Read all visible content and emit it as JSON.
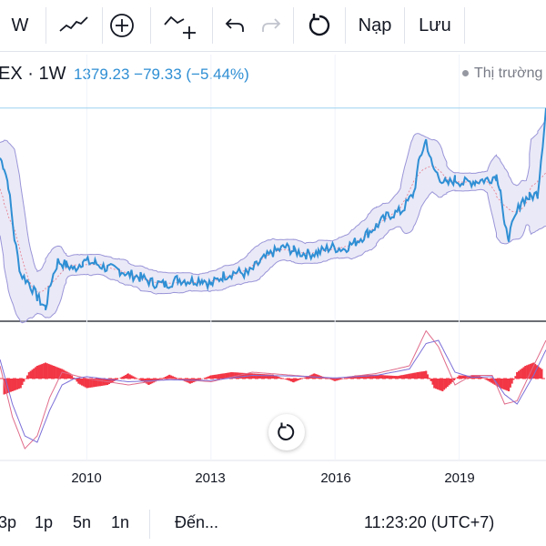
{
  "toolbar": {
    "interval_label": "W",
    "undo_icon": "undo-icon",
    "redo_icon": "redo-icon",
    "reset_icon": "reset-icon",
    "load_label": "Nạp",
    "save_label": "Lưu"
  },
  "legend": {
    "symbol_interval": "EX · 1W",
    "price_change": "1379.23  −79.33 (−5.44%)",
    "market_status": "Thị trường"
  },
  "colors": {
    "price_line": "#2f8fd4",
    "band_fill": "#d9d7f0",
    "band_line": "#9a95d8",
    "macd_positive": "#f23645",
    "signal_line": "#7b6fd8"
  },
  "chart_data": [
    {
      "type": "line",
      "title": "",
      "x_ticks": [
        "2010",
        "2013",
        "2016",
        "2019"
      ],
      "x_tick_years": [
        2010,
        2013,
        2016,
        2019
      ],
      "xlim": [
        2007.9,
        2021.1
      ],
      "ylim": [
        200,
        1500
      ],
      "reference_level": 1379.23,
      "overlay": "bands",
      "series": [
        {
          "x": [
            2007.9,
            2008.0,
            2008.1,
            2008.25,
            2008.4,
            2008.6,
            2008.8,
            2009.0,
            2009.15,
            2009.3,
            2009.5,
            2009.7,
            2009.9,
            2010.2,
            2010.5,
            2010.8,
            2011.0,
            2011.3,
            2011.6,
            2011.9,
            2012.2,
            2012.5,
            2012.8,
            2013.0,
            2013.3,
            2013.6,
            2013.9,
            2014.2,
            2014.5,
            2014.8,
            2015.0,
            2015.3,
            2015.6,
            2015.9,
            2016.2,
            2016.5,
            2016.8,
            2017.0,
            2017.3,
            2017.6,
            2017.9,
            2018.05,
            2018.2,
            2018.35,
            2018.5,
            2018.7,
            2018.9,
            2019.1,
            2019.4,
            2019.7,
            2019.9,
            2020.0,
            2020.1,
            2020.2,
            2020.35,
            2020.5,
            2020.7,
            2020.9,
            2021.1
          ],
          "values": [
            1100,
            1050,
            950,
            650,
            450,
            400,
            320,
            260,
            420,
            520,
            500,
            480,
            520,
            510,
            480,
            470,
            450,
            430,
            400,
            390,
            420,
            410,
            420,
            390,
            440,
            460,
            450,
            520,
            570,
            600,
            580,
            560,
            570,
            600,
            590,
            630,
            680,
            720,
            780,
            800,
            900,
            1100,
            1200,
            1050,
            1000,
            950,
            980,
            960,
            970,
            980,
            1000,
            930,
            700,
            660,
            760,
            860,
            880,
            900,
            1379.23
          ]
        }
      ]
    },
    {
      "type": "bar",
      "title": "",
      "indicator": "MACD",
      "xlim": [
        2007.9,
        2021.1
      ],
      "ylim": [
        -120,
        80
      ],
      "histogram": {
        "x": [
          2008.0,
          2008.2,
          2008.4,
          2008.6,
          2008.8,
          2009.0,
          2009.2,
          2009.4,
          2009.6,
          2009.8,
          2010.0,
          2010.5,
          2011.0,
          2011.5,
          2012.0,
          2012.5,
          2013.0,
          2013.5,
          2014.0,
          2014.5,
          2015.0,
          2015.5,
          2016.0,
          2016.5,
          2017.0,
          2017.5,
          2018.0,
          2018.2,
          2018.4,
          2018.6,
          2018.8,
          2019.0,
          2019.5,
          2020.0,
          2020.2,
          2020.4,
          2020.6,
          2020.8,
          2021.0
        ],
        "values": [
          -25,
          -20,
          -15,
          10,
          20,
          25,
          20,
          15,
          8,
          -8,
          -15,
          -10,
          8,
          -10,
          6,
          -8,
          5,
          10,
          8,
          6,
          -6,
          8,
          -4,
          5,
          6,
          4,
          10,
          12,
          -15,
          -20,
          -8,
          5,
          4,
          -15,
          -20,
          10,
          20,
          25,
          15
        ]
      },
      "macd": {
        "x": [
          2007.9,
          2008.2,
          2008.5,
          2008.8,
          2009.1,
          2009.4,
          2009.7,
          2010.0,
          2011.0,
          2012.0,
          2013.0,
          2014.0,
          2015.0,
          2016.0,
          2017.0,
          2017.8,
          2018.2,
          2018.5,
          2018.9,
          2019.3,
          2019.8,
          2020.1,
          2020.4,
          2020.8,
          2021.1
        ],
        "values": [
          20,
          -60,
          -110,
          -90,
          -30,
          10,
          5,
          0,
          -10,
          0,
          -5,
          10,
          5,
          0,
          8,
          20,
          75,
          50,
          -10,
          5,
          5,
          -40,
          -35,
          20,
          60
        ]
      },
      "signal": {
        "x": [
          2007.9,
          2008.2,
          2008.5,
          2008.8,
          2009.1,
          2009.4,
          2009.7,
          2010.0,
          2011.0,
          2012.0,
          2013.0,
          2014.0,
          2015.0,
          2016.0,
          2017.0,
          2017.8,
          2018.2,
          2018.5,
          2018.9,
          2019.3,
          2019.8,
          2020.1,
          2020.4,
          2020.8,
          2021.1
        ],
        "values": [
          30,
          -40,
          -90,
          -100,
          -50,
          -10,
          0,
          3,
          -5,
          -2,
          -3,
          5,
          4,
          1,
          5,
          15,
          55,
          60,
          10,
          2,
          3,
          -25,
          -40,
          5,
          45
        ]
      }
    }
  ],
  "time_axis": {
    "labels": [
      "2010",
      "2013",
      "2016",
      "2019"
    ]
  },
  "reset_chart_icon": "reset-chart-icon",
  "bottom_bar": {
    "range_3m": "3p",
    "range_1d": "1p",
    "range_5d": "5n",
    "range_1y": "1n",
    "goto_label": "Đến...",
    "clock": "11:23:20 (UTC+7)"
  }
}
